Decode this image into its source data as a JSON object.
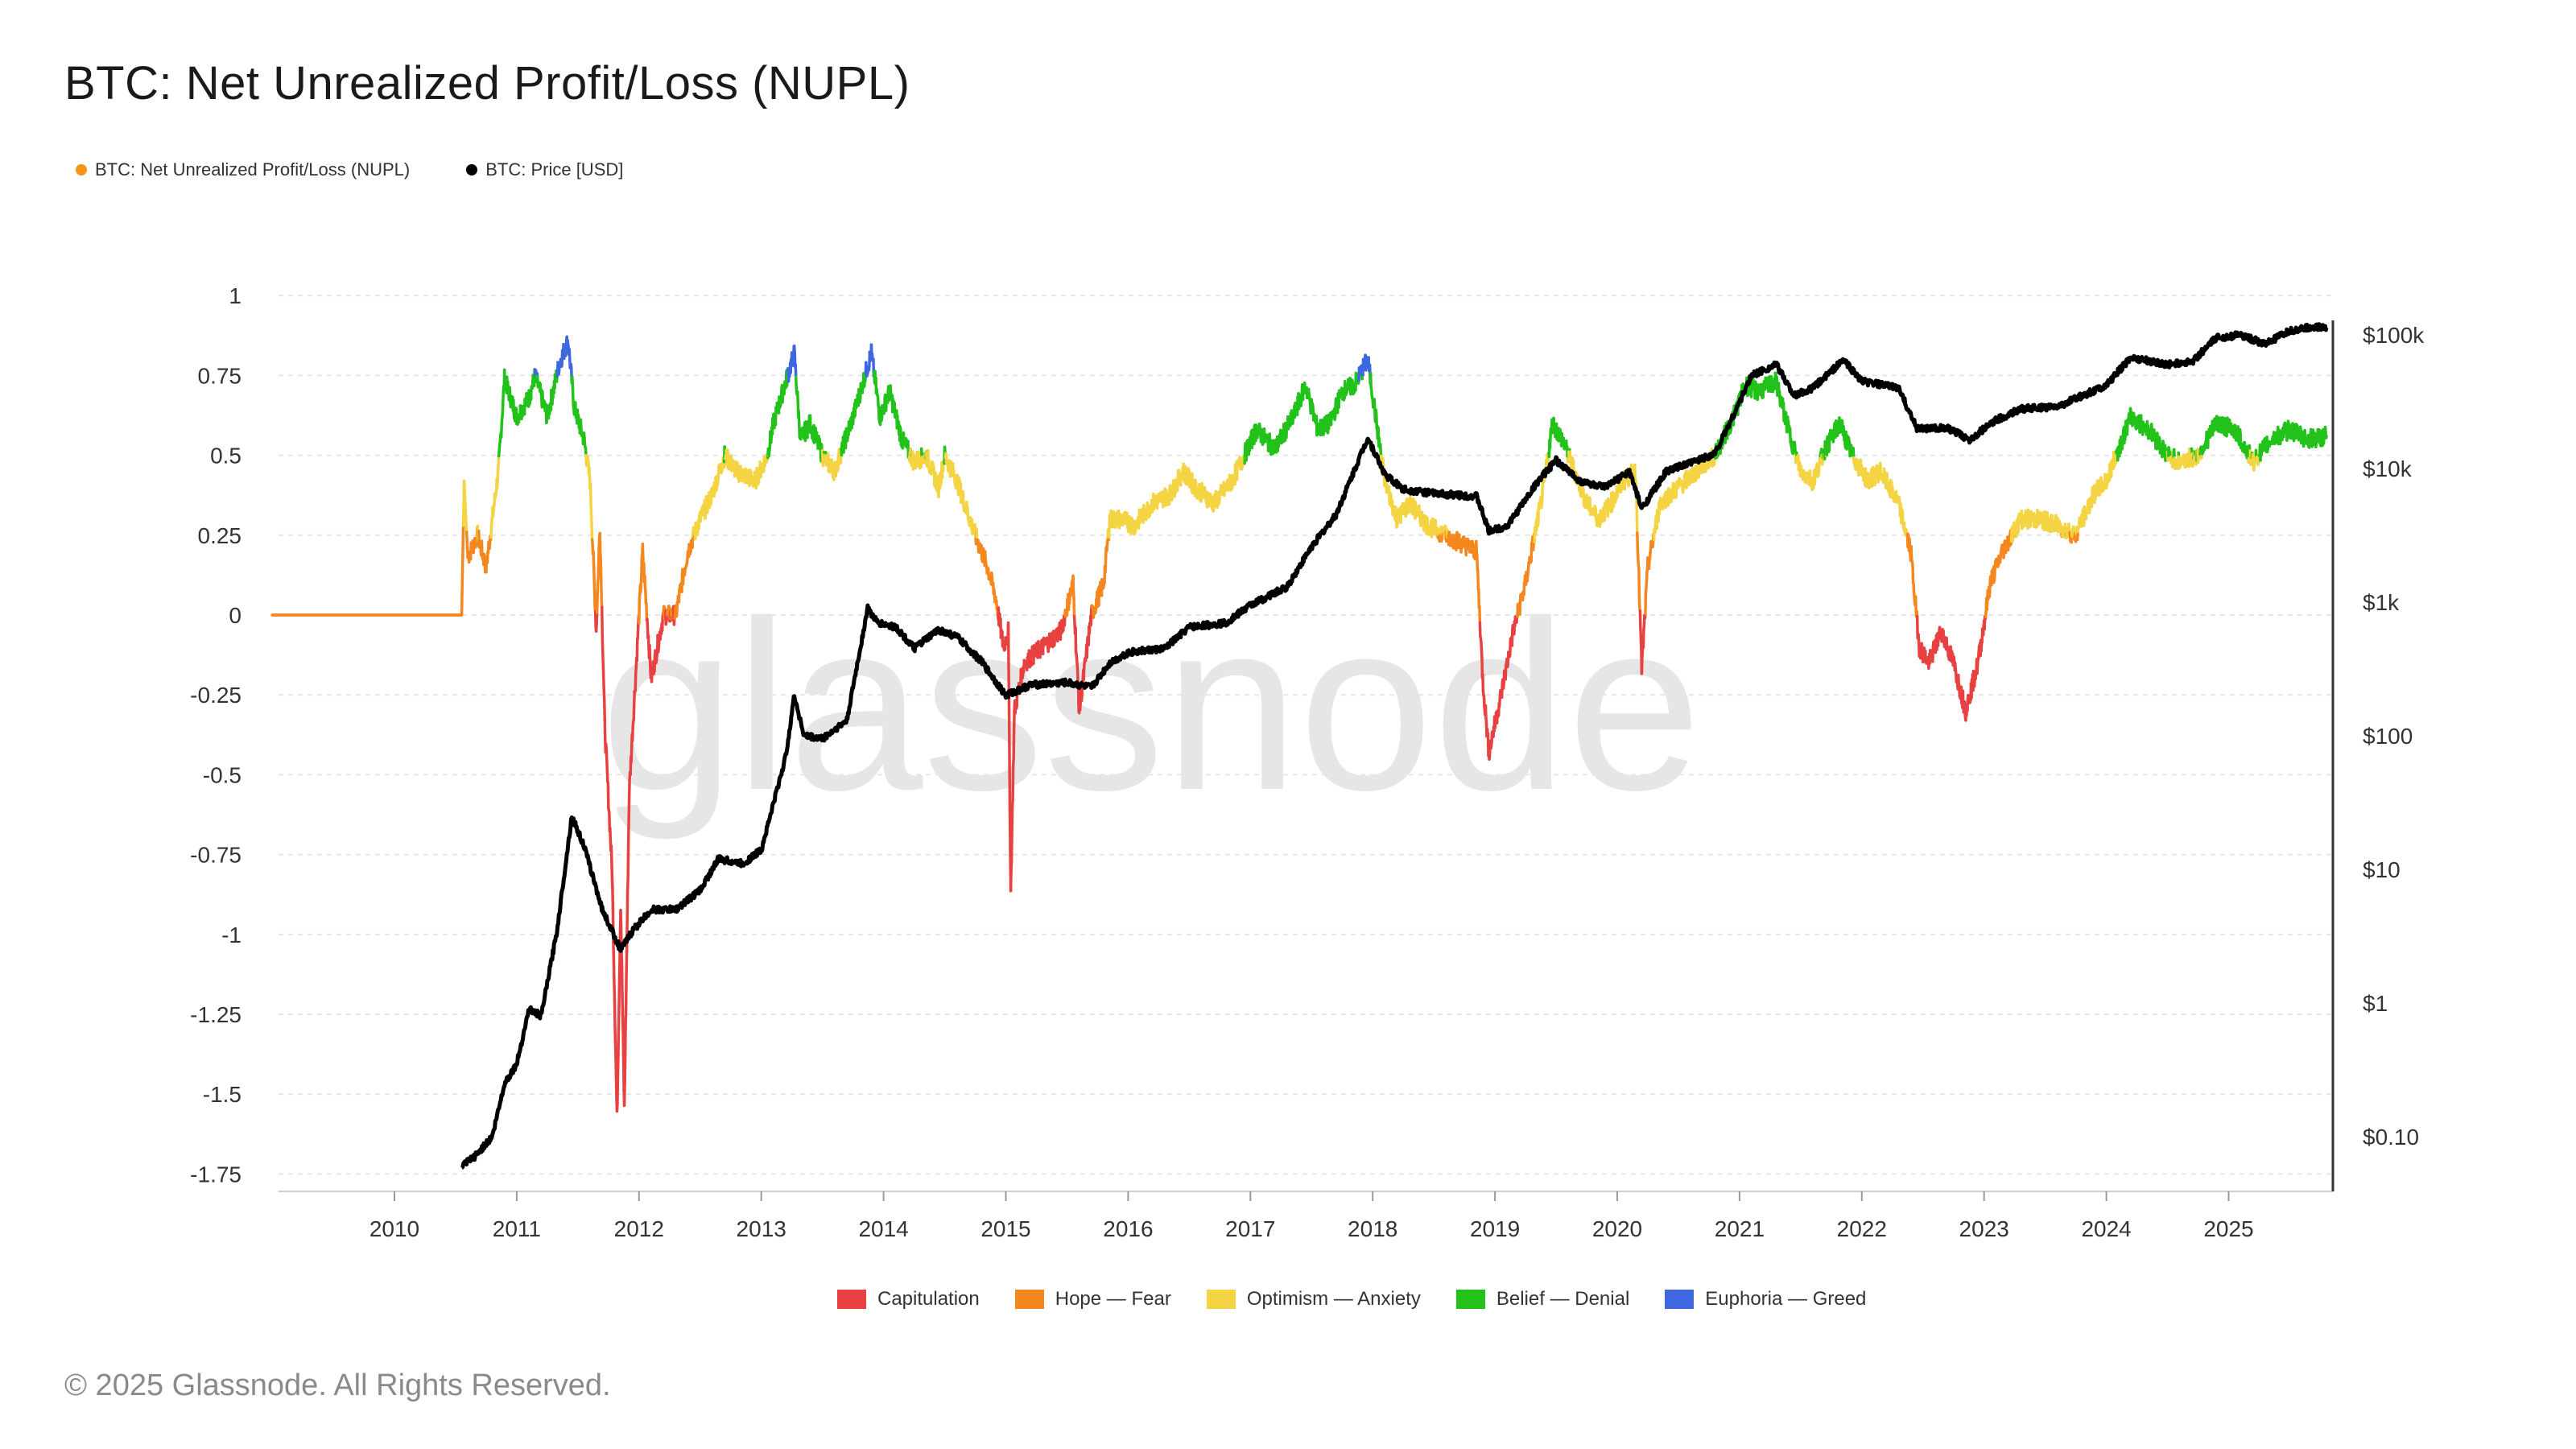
{
  "title": "BTC: Net Unrealized Profit/Loss (NUPL)",
  "legend_top": [
    {
      "label": "BTC: Net Unrealized Profit/Loss (NUPL)",
      "color": "#f7931a"
    },
    {
      "label": "BTC: Price [USD]",
      "color": "#000000"
    }
  ],
  "phase_legend": [
    {
      "label": "Capitulation",
      "color": "#e84141"
    },
    {
      "label": "Hope — Fear",
      "color": "#f5871f"
    },
    {
      "label": "Optimism — Anxiety",
      "color": "#f4d443"
    },
    {
      "label": "Belief — Denial",
      "color": "#22c21a"
    },
    {
      "label": "Euphoria — Greed",
      "color": "#3f67e0"
    }
  ],
  "watermark": "glassnode",
  "footer": "© 2025 Glassnode. All Rights Reserved.",
  "chart_data": {
    "type": "line",
    "title": "BTC: Net Unrealized Profit/Loss (NUPL)",
    "x_ticks": [
      "2010",
      "2011",
      "2012",
      "2013",
      "2014",
      "2015",
      "2016",
      "2017",
      "2018",
      "2019",
      "2020",
      "2021",
      "2022",
      "2023",
      "2024",
      "2025"
    ],
    "y_left": {
      "ticks": [
        1,
        0.75,
        0.5,
        0.25,
        0,
        -0.25,
        -0.5,
        -0.75,
        -1,
        -1.25,
        -1.5,
        -1.75
      ],
      "tick_labels": [
        "1",
        "0.75",
        "0.5",
        "0.25",
        "0",
        "-0.25",
        "-0.5",
        "-0.75",
        "-1",
        "-1.25",
        "-1.5",
        "-1.75"
      ],
      "range": [
        -1.8,
        1.0
      ]
    },
    "y_right": {
      "scale": "log",
      "ticks": [
        100000,
        10000,
        1000,
        100,
        10,
        1,
        0.1
      ],
      "tick_labels": [
        "$100k",
        "$10k",
        "$1k",
        "$100",
        "$10",
        "$1",
        "$0.10"
      ]
    },
    "x_range": [
      2009.0,
      2025.85
    ],
    "phase_thresholds": [
      0,
      0.25,
      0.5,
      0.75
    ],
    "series": [
      {
        "name": "BTC: Net Unrealized Profit/Loss (NUPL)",
        "axis": "left",
        "points": [
          [
            2009.0,
            0
          ],
          [
            2010.55,
            0
          ],
          [
            2010.57,
            0.42
          ],
          [
            2010.6,
            0.18
          ],
          [
            2010.68,
            0.25
          ],
          [
            2010.75,
            0.15
          ],
          [
            2010.85,
            0.45
          ],
          [
            2010.9,
            0.74
          ],
          [
            2011.0,
            0.62
          ],
          [
            2011.1,
            0.68
          ],
          [
            2011.15,
            0.75
          ],
          [
            2011.25,
            0.62
          ],
          [
            2011.35,
            0.79
          ],
          [
            2011.42,
            0.86
          ],
          [
            2011.47,
            0.65
          ],
          [
            2011.55,
            0.55
          ],
          [
            2011.6,
            0.42
          ],
          [
            2011.65,
            -0.05
          ],
          [
            2011.68,
            0.28
          ],
          [
            2011.72,
            -0.35
          ],
          [
            2011.78,
            -0.8
          ],
          [
            2011.82,
            -1.58
          ],
          [
            2011.85,
            -0.9
          ],
          [
            2011.88,
            -1.55
          ],
          [
            2011.92,
            -0.55
          ],
          [
            2012.0,
            0.0
          ],
          [
            2012.03,
            0.2
          ],
          [
            2012.1,
            -0.2
          ],
          [
            2012.2,
            0.0
          ],
          [
            2012.3,
            0.0
          ],
          [
            2012.4,
            0.2
          ],
          [
            2012.5,
            0.3
          ],
          [
            2012.6,
            0.38
          ],
          [
            2012.7,
            0.5
          ],
          [
            2012.8,
            0.45
          ],
          [
            2012.95,
            0.42
          ],
          [
            2013.05,
            0.5
          ],
          [
            2013.1,
            0.6
          ],
          [
            2013.2,
            0.73
          ],
          [
            2013.27,
            0.82
          ],
          [
            2013.32,
            0.55
          ],
          [
            2013.4,
            0.6
          ],
          [
            2013.5,
            0.5
          ],
          [
            2013.6,
            0.45
          ],
          [
            2013.75,
            0.62
          ],
          [
            2013.9,
            0.82
          ],
          [
            2013.97,
            0.62
          ],
          [
            2014.05,
            0.7
          ],
          [
            2014.15,
            0.55
          ],
          [
            2014.25,
            0.48
          ],
          [
            2014.35,
            0.5
          ],
          [
            2014.45,
            0.4
          ],
          [
            2014.5,
            0.5
          ],
          [
            2014.6,
            0.42
          ],
          [
            2014.75,
            0.25
          ],
          [
            2014.85,
            0.15
          ],
          [
            2014.92,
            0.05
          ],
          [
            2014.98,
            -0.1
          ],
          [
            2015.02,
            -0.05
          ],
          [
            2015.04,
            -0.87
          ],
          [
            2015.07,
            -0.3
          ],
          [
            2015.15,
            -0.15
          ],
          [
            2015.3,
            -0.1
          ],
          [
            2015.45,
            -0.05
          ],
          [
            2015.55,
            0.1
          ],
          [
            2015.6,
            -0.3
          ],
          [
            2015.7,
            0.0
          ],
          [
            2015.8,
            0.1
          ],
          [
            2015.85,
            0.3
          ],
          [
            2015.95,
            0.3
          ],
          [
            2016.05,
            0.28
          ],
          [
            2016.2,
            0.35
          ],
          [
            2016.35,
            0.38
          ],
          [
            2016.45,
            0.45
          ],
          [
            2016.55,
            0.4
          ],
          [
            2016.7,
            0.35
          ],
          [
            2016.85,
            0.42
          ],
          [
            2016.95,
            0.5
          ],
          [
            2017.05,
            0.58
          ],
          [
            2017.2,
            0.52
          ],
          [
            2017.35,
            0.62
          ],
          [
            2017.45,
            0.72
          ],
          [
            2017.55,
            0.58
          ],
          [
            2017.65,
            0.6
          ],
          [
            2017.75,
            0.7
          ],
          [
            2017.85,
            0.72
          ],
          [
            2017.96,
            0.8
          ],
          [
            2018.05,
            0.55
          ],
          [
            2018.1,
            0.42
          ],
          [
            2018.2,
            0.3
          ],
          [
            2018.3,
            0.35
          ],
          [
            2018.45,
            0.28
          ],
          [
            2018.6,
            0.25
          ],
          [
            2018.75,
            0.22
          ],
          [
            2018.85,
            0.2
          ],
          [
            2018.9,
            -0.2
          ],
          [
            2018.95,
            -0.43
          ],
          [
            2019.05,
            -0.25
          ],
          [
            2019.15,
            -0.05
          ],
          [
            2019.25,
            0.1
          ],
          [
            2019.4,
            0.4
          ],
          [
            2019.47,
            0.6
          ],
          [
            2019.55,
            0.55
          ],
          [
            2019.65,
            0.45
          ],
          [
            2019.75,
            0.35
          ],
          [
            2019.85,
            0.3
          ],
          [
            2019.95,
            0.35
          ],
          [
            2020.05,
            0.42
          ],
          [
            2020.15,
            0.45
          ],
          [
            2020.2,
            -0.17
          ],
          [
            2020.25,
            0.15
          ],
          [
            2020.35,
            0.35
          ],
          [
            2020.5,
            0.4
          ],
          [
            2020.65,
            0.45
          ],
          [
            2020.8,
            0.5
          ],
          [
            2020.95,
            0.62
          ],
          [
            2021.05,
            0.72
          ],
          [
            2021.15,
            0.7
          ],
          [
            2021.3,
            0.73
          ],
          [
            2021.4,
            0.58
          ],
          [
            2021.5,
            0.45
          ],
          [
            2021.6,
            0.42
          ],
          [
            2021.7,
            0.52
          ],
          [
            2021.82,
            0.6
          ],
          [
            2021.92,
            0.5
          ],
          [
            2022.05,
            0.42
          ],
          [
            2022.15,
            0.45
          ],
          [
            2022.3,
            0.35
          ],
          [
            2022.4,
            0.2
          ],
          [
            2022.47,
            -0.1
          ],
          [
            2022.55,
            -0.15
          ],
          [
            2022.65,
            -0.05
          ],
          [
            2022.75,
            -0.15
          ],
          [
            2022.85,
            -0.3
          ],
          [
            2022.95,
            -0.15
          ],
          [
            2023.05,
            0.1
          ],
          [
            2023.15,
            0.2
          ],
          [
            2023.3,
            0.3
          ],
          [
            2023.45,
            0.3
          ],
          [
            2023.6,
            0.28
          ],
          [
            2023.75,
            0.25
          ],
          [
            2023.9,
            0.38
          ],
          [
            2024.0,
            0.42
          ],
          [
            2024.1,
            0.52
          ],
          [
            2024.2,
            0.62
          ],
          [
            2024.35,
            0.58
          ],
          [
            2024.5,
            0.5
          ],
          [
            2024.6,
            0.48
          ],
          [
            2024.75,
            0.5
          ],
          [
            2024.9,
            0.6
          ],
          [
            2025.05,
            0.58
          ],
          [
            2025.2,
            0.48
          ],
          [
            2025.35,
            0.55
          ],
          [
            2025.5,
            0.58
          ],
          [
            2025.65,
            0.55
          ],
          [
            2025.8,
            0.56
          ]
        ]
      },
      {
        "name": "BTC: Price [USD]",
        "axis": "right",
        "points": [
          [
            2010.55,
            0.06
          ],
          [
            2010.65,
            0.07
          ],
          [
            2010.8,
            0.1
          ],
          [
            2010.9,
            0.25
          ],
          [
            2011.0,
            0.35
          ],
          [
            2011.1,
            0.9
          ],
          [
            2011.2,
            0.8
          ],
          [
            2011.33,
            3.5
          ],
          [
            2011.45,
            25
          ],
          [
            2011.55,
            15
          ],
          [
            2011.7,
            5
          ],
          [
            2011.85,
            2.5
          ],
          [
            2011.95,
            3.5
          ],
          [
            2012.1,
            5
          ],
          [
            2012.3,
            5
          ],
          [
            2012.5,
            7
          ],
          [
            2012.65,
            12
          ],
          [
            2012.85,
            11
          ],
          [
            2013.0,
            14
          ],
          [
            2013.2,
            70
          ],
          [
            2013.27,
            200
          ],
          [
            2013.35,
            100
          ],
          [
            2013.5,
            95
          ],
          [
            2013.7,
            130
          ],
          [
            2013.87,
            900
          ],
          [
            2013.95,
            700
          ],
          [
            2014.1,
            650
          ],
          [
            2014.25,
            450
          ],
          [
            2014.45,
            620
          ],
          [
            2014.6,
            550
          ],
          [
            2014.8,
            360
          ],
          [
            2015.0,
            200
          ],
          [
            2015.2,
            240
          ],
          [
            2015.5,
            250
          ],
          [
            2015.7,
            230
          ],
          [
            2015.85,
            350
          ],
          [
            2016.0,
            420
          ],
          [
            2016.3,
            450
          ],
          [
            2016.5,
            650
          ],
          [
            2016.8,
            700
          ],
          [
            2017.0,
            950
          ],
          [
            2017.3,
            1300
          ],
          [
            2017.5,
            2600
          ],
          [
            2017.7,
            4500
          ],
          [
            2017.96,
            17000
          ],
          [
            2018.1,
            9000
          ],
          [
            2018.25,
            7000
          ],
          [
            2018.5,
            6500
          ],
          [
            2018.85,
            6200
          ],
          [
            2018.95,
            3400
          ],
          [
            2019.1,
            3700
          ],
          [
            2019.35,
            8000
          ],
          [
            2019.5,
            11500
          ],
          [
            2019.7,
            8000
          ],
          [
            2019.9,
            7200
          ],
          [
            2020.1,
            9500
          ],
          [
            2020.2,
            5000
          ],
          [
            2020.4,
            9500
          ],
          [
            2020.6,
            11000
          ],
          [
            2020.8,
            13000
          ],
          [
            2020.95,
            25000
          ],
          [
            2021.1,
            50000
          ],
          [
            2021.3,
            60000
          ],
          [
            2021.45,
            35000
          ],
          [
            2021.6,
            40000
          ],
          [
            2021.85,
            65000
          ],
          [
            2022.0,
            45000
          ],
          [
            2022.3,
            40000
          ],
          [
            2022.45,
            20000
          ],
          [
            2022.7,
            20000
          ],
          [
            2022.88,
            16500
          ],
          [
            2023.1,
            23000
          ],
          [
            2023.3,
            28000
          ],
          [
            2023.6,
            29000
          ],
          [
            2023.8,
            35000
          ],
          [
            2024.0,
            42000
          ],
          [
            2024.2,
            68000
          ],
          [
            2024.5,
            60000
          ],
          [
            2024.7,
            63000
          ],
          [
            2024.9,
            95000
          ],
          [
            2025.1,
            100000
          ],
          [
            2025.3,
            85000
          ],
          [
            2025.5,
            107000
          ],
          [
            2025.7,
            115000
          ],
          [
            2025.8,
            113000
          ]
        ]
      }
    ]
  }
}
